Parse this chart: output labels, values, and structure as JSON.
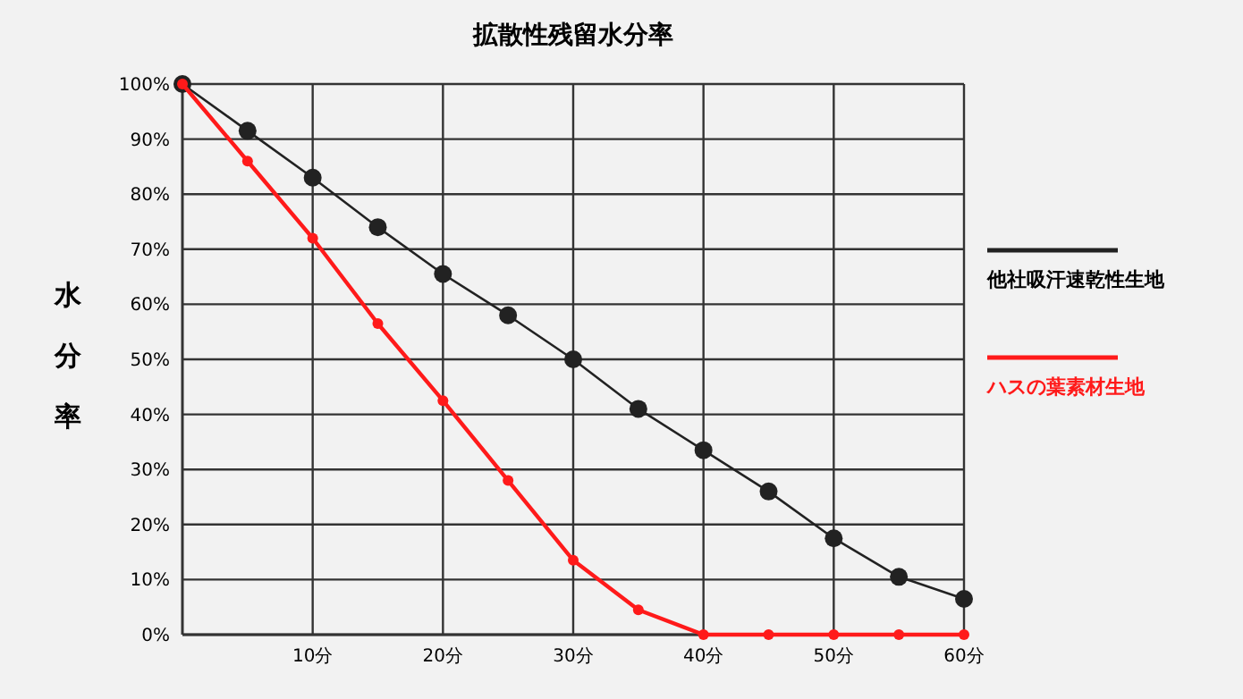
{
  "chart_data": {
    "type": "line",
    "title": "拡散性残留水分率",
    "ylabel": "水分率",
    "x": [
      0,
      5,
      10,
      15,
      20,
      25,
      30,
      35,
      40,
      45,
      50,
      55,
      60
    ],
    "series": [
      {
        "name": "他社吸汗速乾性生地",
        "color": "#222222",
        "values": [
          100,
          91.5,
          83,
          74,
          65.5,
          58,
          50,
          41,
          33.5,
          26,
          17.5,
          10.5,
          6.5
        ]
      },
      {
        "name": "ハスの葉素材生地",
        "color": "#ff1a1a",
        "values": [
          100,
          86,
          72,
          56.5,
          42.5,
          28,
          13.5,
          4.5,
          0,
          0,
          0,
          0,
          0
        ]
      }
    ],
    "xlim": [
      0,
      60
    ],
    "xticks": [
      {
        "value": 10,
        "label": "10分"
      },
      {
        "value": 20,
        "label": "20分"
      },
      {
        "value": 30,
        "label": "30分"
      },
      {
        "value": 40,
        "label": "40分"
      },
      {
        "value": 50,
        "label": "50分"
      },
      {
        "value": 60,
        "label": "60分"
      }
    ],
    "ylim": [
      0,
      100
    ],
    "yticks": [
      {
        "value": 0,
        "label": "0%"
      },
      {
        "value": 10,
        "label": "10%"
      },
      {
        "value": 20,
        "label": "20%"
      },
      {
        "value": 30,
        "label": "30%"
      },
      {
        "value": 40,
        "label": "40%"
      },
      {
        "value": 50,
        "label": "50%"
      },
      {
        "value": 60,
        "label": "60%"
      },
      {
        "value": 70,
        "label": "70%"
      },
      {
        "value": 80,
        "label": "80%"
      },
      {
        "value": 90,
        "label": "90%"
      },
      {
        "value": 100,
        "label": "100%"
      }
    ],
    "grid": true,
    "legend": "right",
    "marker": "circle",
    "line_style": "solid"
  }
}
